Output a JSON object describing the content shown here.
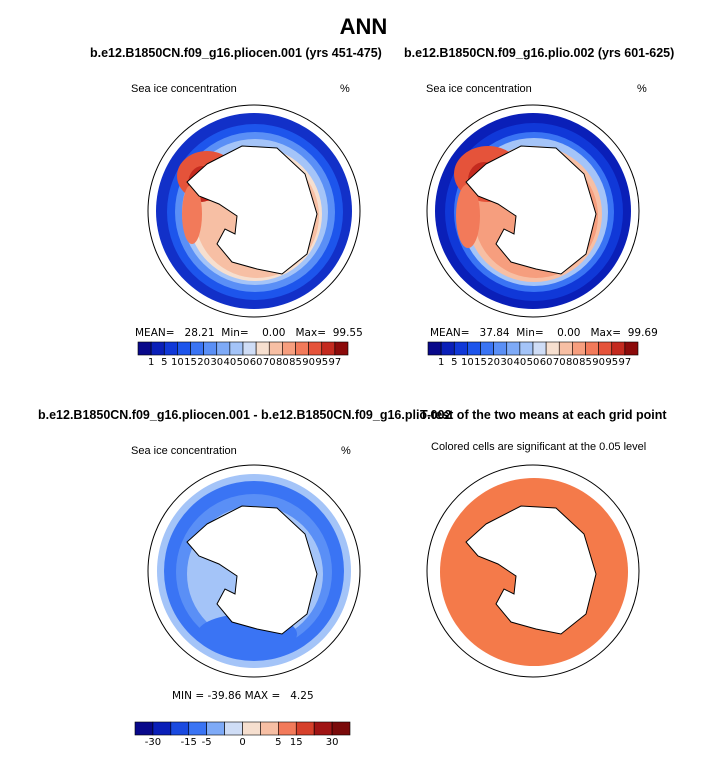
{
  "page": {
    "title": "ANN"
  },
  "panels": [
    {
      "id": "panel-a",
      "title": "b.e12.B1850CN.f09_g16.pliocen.001 (yrs 451-475)",
      "variable": "Sea ice concentration",
      "units": "%",
      "stats": {
        "mean_label": "MEAN=",
        "mean": "28.21",
        "min_label": "Min=",
        "min": "0.00",
        "max_label": "Max=",
        "max": "99.55"
      }
    },
    {
      "id": "panel-b",
      "title": "b.e12.B1850CN.f09_g16.plio.002 (yrs 601-625)",
      "variable": "Sea ice concentration",
      "units": "%",
      "stats": {
        "mean_label": "MEAN=",
        "mean": "37.84",
        "min_label": "Min=",
        "min": "0.00",
        "max_label": "Max=",
        "max": "99.69"
      }
    },
    {
      "id": "panel-c",
      "title": "b.e12.B1850CN.f09_g16.pliocen.001 - b.e12.B1850CN.f09_g16.plio.002",
      "variable": "Sea ice concentration",
      "units": "%",
      "stats_text": "MIN = -39.86 MAX =   4.25"
    },
    {
      "id": "panel-d",
      "title": "T-test of the two means at each grid point",
      "subtitle": "Colored cells are significant at the 0.05 level"
    }
  ],
  "colorbars": {
    "concentration": {
      "labels": [
        "1",
        "5",
        "10",
        "15",
        "20",
        "30",
        "40",
        "50",
        "60",
        "70",
        "80",
        "85",
        "90",
        "95",
        "97"
      ],
      "colors": [
        "#08088a",
        "#0a1fb8",
        "#1038d8",
        "#1d55ec",
        "#3a74f4",
        "#5a8ff6",
        "#7eaaf7",
        "#a4c4f8",
        "#cfddf6",
        "#f6dfcf",
        "#f7bfa4",
        "#f69e7e",
        "#f27a5a",
        "#e5533a",
        "#c42a1f",
        "#8c0a0a"
      ]
    },
    "difference": {
      "labels": [
        "-30",
        "-15",
        "-5",
        "0",
        "5",
        "15",
        "30"
      ],
      "colors": [
        "#08088a",
        "#0a1fb8",
        "#1a4ae0",
        "#3a74f4",
        "#7eaaf7",
        "#cfddf6",
        "#f6dfcf",
        "#f7bfa4",
        "#f27a5a",
        "#d6402b",
        "#a01414",
        "#7a0a0a"
      ]
    }
  },
  "colors": {
    "ice_outer": "#1a3fd8",
    "ice_mid": "#5a8ff6",
    "ice_inner": "#f6dfcf",
    "ice_core": "#e5533a",
    "ttest_fill": "#f47a4a",
    "diff_fill": "#3a74f4",
    "diff_light": "#a4c4f8"
  }
}
